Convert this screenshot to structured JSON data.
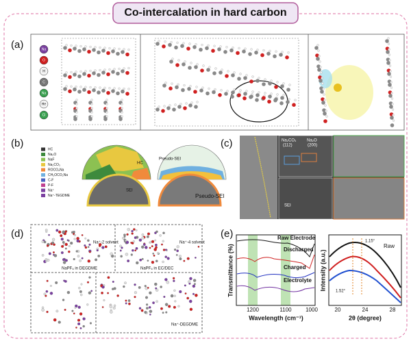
{
  "title": "Co-intercalation in hard carbon",
  "panels": {
    "a": {
      "label": "(a)",
      "legend": [
        "Na",
        "O",
        "H",
        "C",
        "Na",
        "He",
        "Cl"
      ]
    },
    "b": {
      "label": "(b)",
      "legend": [
        "HC",
        "Na₂O",
        "NaF",
        "Na₂CO₃",
        "ROCO₂Na",
        "CH₃OCO₂Na",
        "C-F",
        "P-F",
        "Na⁺",
        "Na⁺-TEGDME"
      ],
      "annotations": [
        "Pseudo-SEI",
        "HC",
        "SEI",
        "Pseudo-SEI"
      ]
    },
    "c": {
      "label": "(c)",
      "annotations": [
        "Na₂CO₃",
        "(112)",
        "Na₂O",
        "(200)",
        "SEI"
      ]
    },
    "d": {
      "label": "(d)",
      "annotations": [
        "NaPF₆ in DEGDME",
        "Na⁺-2 solvent",
        "NaPF₆ in EC/DEC",
        "Na⁺-4 solvent",
        "Na⁺-DEGDME"
      ]
    },
    "e": {
      "label": "(e)",
      "ftir": {
        "y_label": "Transmittance (%)",
        "x_label": "Wavelength (cm⁻¹)",
        "xticks": [
          1200,
          1100,
          1000
        ],
        "curves": [
          "Raw Electrode",
          "Discharged",
          "Charged",
          "Electrolyte"
        ]
      },
      "xrd": {
        "y_label": "Intensity (a.u.)",
        "x_label": "2θ (degree)",
        "xticks": [
          20,
          24,
          28
        ],
        "annotations": [
          "Raw",
          "1.15°",
          "1.52°"
        ]
      }
    }
  }
}
